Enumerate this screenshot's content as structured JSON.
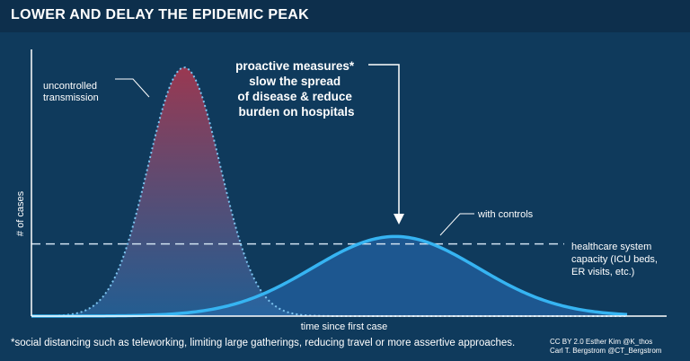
{
  "title": "LOWER AND DELAY THE EPIDEMIC PEAK",
  "chart_data": {
    "type": "area",
    "xlabel": "time since first case",
    "ylabel": "# of cases",
    "series": [
      {
        "name": "uncontrolled transmission",
        "line_color": "#7cc4f0",
        "line_style": "dotted",
        "fill_top_color": "#b2384f",
        "fill_bottom_color": "#2b6aa5",
        "center": 205,
        "width": 40,
        "peak": 1.0,
        "label": [
          "uncontrolled",
          "transmission"
        ]
      },
      {
        "name": "with controls",
        "line_color": "#36b4f2",
        "line_style": "solid",
        "fill_color": "#1f5b96",
        "center": 440,
        "width": 92,
        "peak": 0.32,
        "label": [
          "with controls"
        ]
      }
    ],
    "threshold": {
      "value": 0.29,
      "style": "dashed",
      "label": [
        "healthcare system",
        "capacity (ICU beds,",
        "ER visits, etc.)"
      ]
    },
    "annotation": {
      "lines": [
        "proactive measures*",
        "slow the spread",
        "of disease & reduce",
        "burden on hospitals"
      ]
    },
    "x_range": [
      35,
      700
    ],
    "y_range": [
      0,
      1
    ]
  },
  "footnote": "*social distancing such as teleworking, limiting large gatherings, reducing travel or more assertive approaches.",
  "credits": [
    "CC BY 2.0  Esther Kim  @K_thos",
    "Carl T. Bergstrom  @CT_Bergstrom"
  ]
}
